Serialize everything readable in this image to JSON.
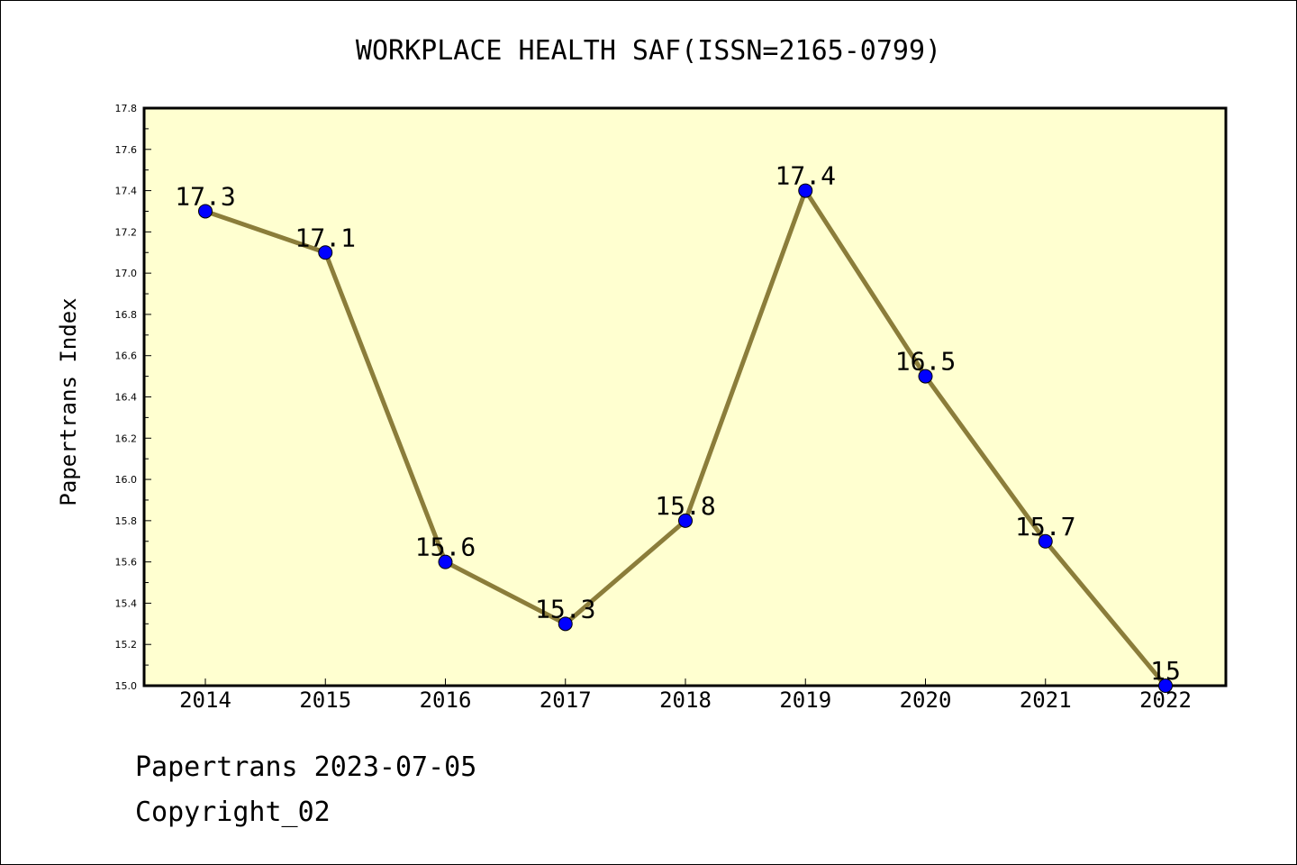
{
  "chart_data": {
    "type": "line",
    "title": "WORKPLACE HEALTH SAF(ISSN=2165-0799)",
    "xlabel": "",
    "ylabel": "Papertrans Index",
    "categories": [
      "2014",
      "2015",
      "2016",
      "2017",
      "2018",
      "2019",
      "2020",
      "2021",
      "2022"
    ],
    "series": [
      {
        "values": [
          17.3,
          17.1,
          15.6,
          15.3,
          15.8,
          17.4,
          16.5,
          15.7,
          15.0
        ],
        "labels": [
          "17.3",
          "17.1",
          "15.6",
          "15.3",
          "15.8",
          "17.4",
          "16.5",
          "15.7",
          "15"
        ]
      }
    ],
    "ylim": [
      15.0,
      17.8
    ],
    "yticks": [
      "15.0",
      "15.2",
      "15.4",
      "15.6",
      "15.8",
      "16.0",
      "16.2",
      "16.4",
      "16.6",
      "16.8",
      "17.0",
      "17.2",
      "17.4",
      "17.6",
      "17.8"
    ],
    "grid": false,
    "legend": "none",
    "colors": {
      "plot_background": "#ffffd0",
      "line": "#8b7d3a",
      "marker": "#0000ff"
    }
  },
  "footer": {
    "line1": "Papertrans 2023-07-05",
    "line2": "Copyright_02"
  }
}
